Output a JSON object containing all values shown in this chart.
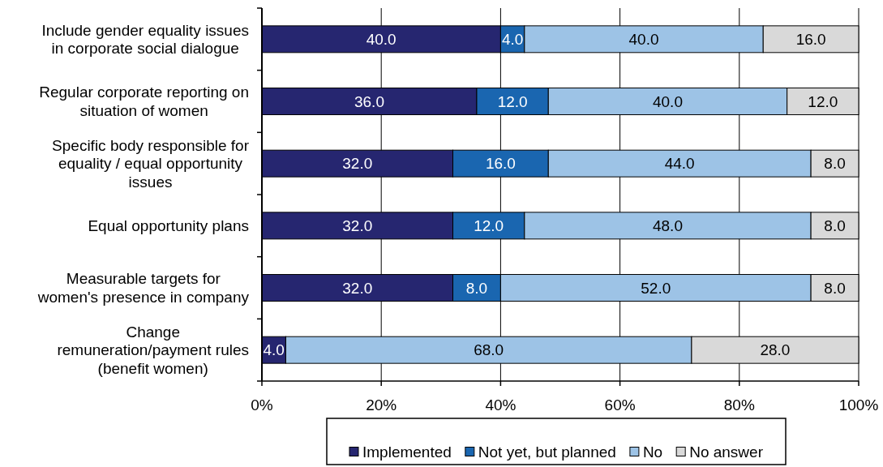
{
  "chart_data": {
    "type": "bar",
    "orientation": "horizontal",
    "stacked": true,
    "categories": [
      "Include gender equality issues\nin corporate social dialogue",
      "Regular corporate reporting on\nsituation of women",
      "Specific body responsible for\nequality / equal opportunity\nissues",
      "Equal opportunity plans",
      "Measurable targets for\nwomen's presence in company",
      "Change\nremuneration/payment rules\n(benefit women)"
    ],
    "series": [
      {
        "name": "Implemented",
        "color": "#262670",
        "values": [
          40,
          36,
          32,
          32,
          32,
          4
        ],
        "value_labels": [
          "40.0",
          "36.0",
          "32.0",
          "32.0",
          "32.0",
          "4.0"
        ]
      },
      {
        "name": "Not yet, but planned",
        "color": "#1a66b0",
        "values": [
          4,
          12,
          16,
          12,
          8,
          null
        ],
        "value_labels": [
          "4.0",
          "12.0",
          "16.0",
          "12.0",
          "8.0",
          null
        ]
      },
      {
        "name": "No",
        "color": "#9dc3e6",
        "values": [
          40,
          40,
          44,
          48,
          52,
          68
        ],
        "value_labels": [
          "40.0",
          "40.0",
          "44.0",
          "48.0",
          "52.0",
          "68.0"
        ]
      },
      {
        "name": "No answer",
        "color": "#d9d9d9",
        "values": [
          16,
          12,
          8,
          8,
          8,
          28
        ],
        "value_labels": [
          "16.0",
          "12.0",
          "8.0",
          "8.0",
          "8.0",
          "28.0"
        ]
      }
    ],
    "xlim": [
      0,
      100
    ],
    "xticks": [
      {
        "value": 0,
        "label": "0%"
      },
      {
        "value": 20,
        "label": "20%"
      },
      {
        "value": 40,
        "label": "40%"
      },
      {
        "value": 60,
        "label": "60%"
      },
      {
        "value": 80,
        "label": "80%"
      },
      {
        "value": 100,
        "label": "100%"
      }
    ],
    "grid": "x",
    "legend": "bottom"
  }
}
